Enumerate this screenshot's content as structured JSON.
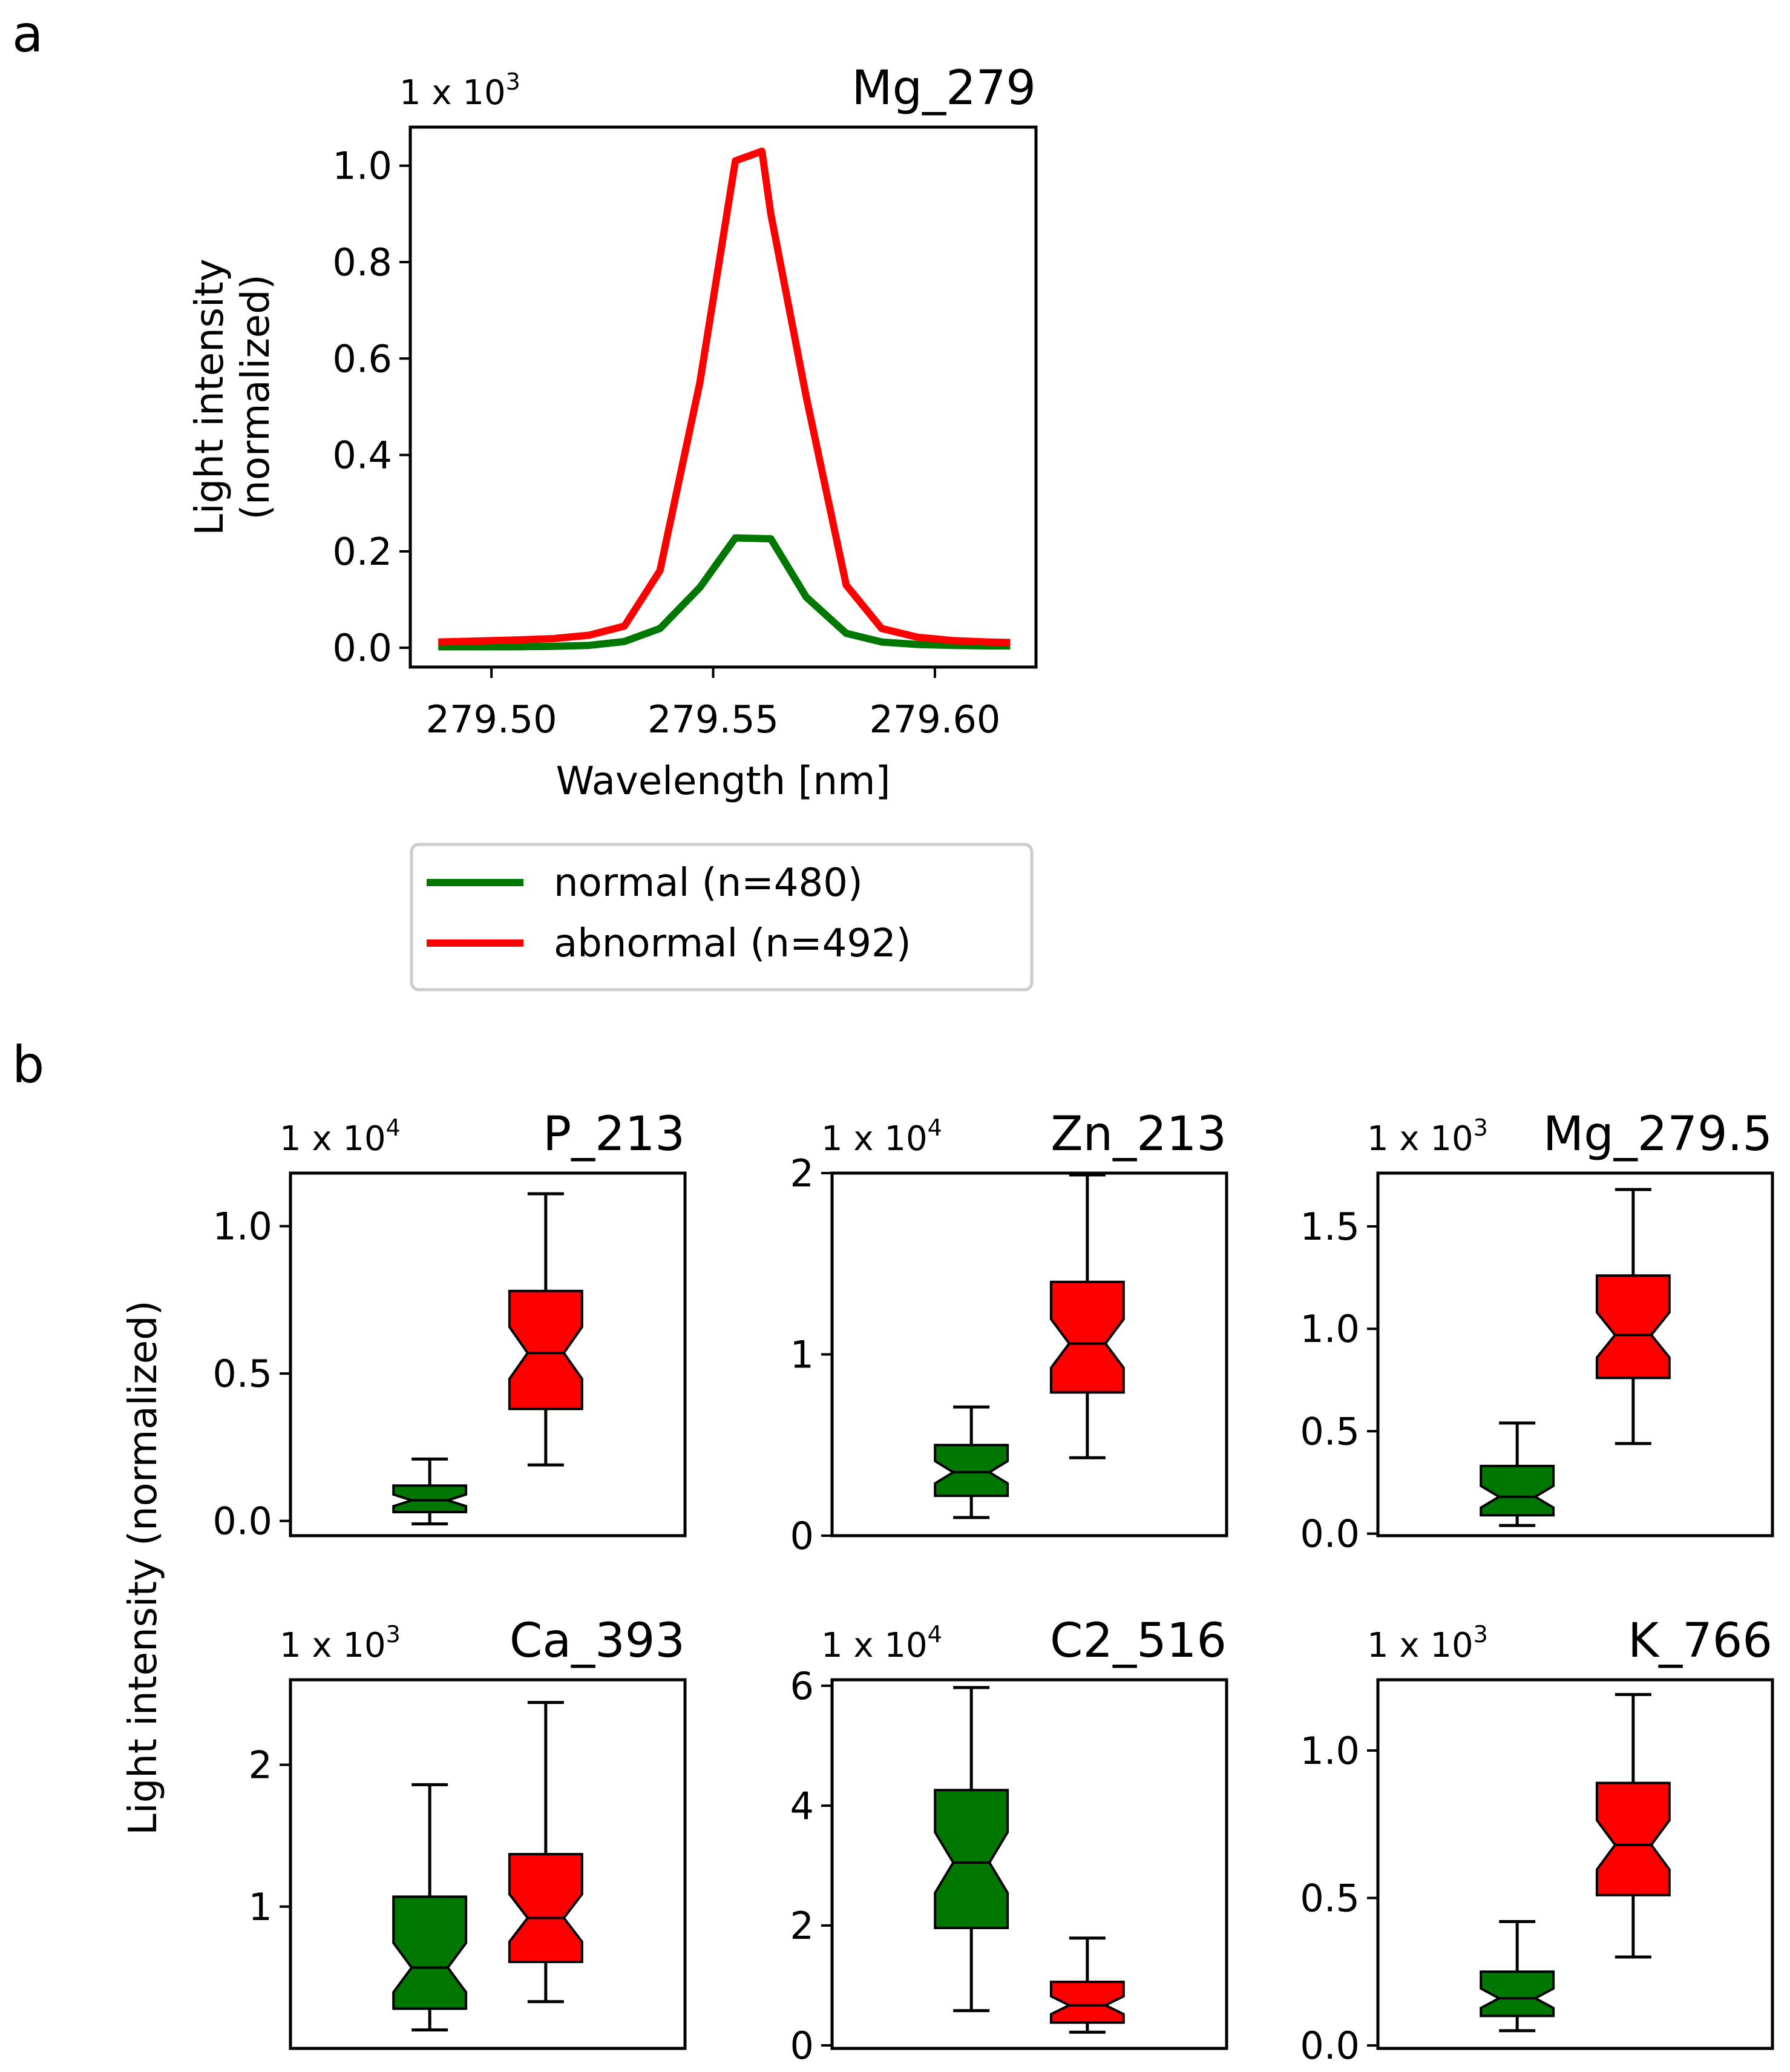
{
  "panels": {
    "a": "a",
    "b": "b"
  },
  "colors": {
    "normal": "#007700",
    "abnormal": "#ff0000",
    "axis": "#000000"
  },
  "legend": {
    "normal_label": "normal (n=480)",
    "abnormal_label": "abnormal (n=492)"
  },
  "boxplot_ylabel": "Light intensity (normalized)",
  "chart_data": [
    {
      "id": "mg279",
      "type": "line",
      "title": "Mg_279",
      "scale_base": "1 x 10",
      "scale_exp": "3",
      "xlabel": "Wavelength [nm]",
      "ylabel_line1": "Light intensity",
      "ylabel_line2": "(normalized)",
      "xlim": [
        279.4817,
        279.6228
      ],
      "ylim": [
        -0.04,
        1.08
      ],
      "xticks": [
        279.5,
        279.55,
        279.6
      ],
      "xtick_labels": [
        "279.50",
        "279.55",
        "279.60"
      ],
      "yticks": [
        0.0,
        0.2,
        0.4,
        0.6,
        0.8,
        1.0
      ],
      "ytick_labels": [
        "0.0",
        "0.2",
        "0.4",
        "0.6",
        "0.8",
        "1.0"
      ],
      "series": [
        {
          "name": "normal (n=480)",
          "color": "#007700",
          "x": [
            279.488,
            279.497,
            279.505,
            279.514,
            279.522,
            279.53,
            279.538,
            279.547,
            279.555,
            279.563,
            279.571,
            279.58,
            279.588,
            279.596,
            279.604,
            279.612,
            279.617
          ],
          "y": [
            0.002,
            0.002,
            0.002,
            0.003,
            0.005,
            0.013,
            0.04,
            0.125,
            0.228,
            0.226,
            0.105,
            0.03,
            0.012,
            0.007,
            0.005,
            0.004,
            0.004
          ]
        },
        {
          "name": "abnormal (n=492)",
          "color": "#ff0000",
          "x": [
            279.488,
            279.497,
            279.505,
            279.514,
            279.522,
            279.53,
            279.538,
            279.547,
            279.555,
            279.561,
            279.563,
            279.571,
            279.58,
            279.588,
            279.596,
            279.604,
            279.612,
            279.617
          ],
          "y": [
            0.012,
            0.014,
            0.016,
            0.019,
            0.026,
            0.045,
            0.16,
            0.55,
            1.01,
            1.03,
            0.9,
            0.52,
            0.13,
            0.04,
            0.022,
            0.015,
            0.012,
            0.011
          ]
        }
      ]
    },
    {
      "id": "p213",
      "type": "box",
      "title": "P_213",
      "scale_base": "1 x 10",
      "scale_exp": "4",
      "ylim": [
        -0.05,
        1.18
      ],
      "yticks": [
        0.0,
        0.5,
        1.0
      ],
      "ytick_labels": [
        "0.0",
        "0.5",
        "1.0"
      ],
      "boxes": [
        {
          "group": "normal",
          "whislo": -0.01,
          "q1": 0.03,
          "med": 0.07,
          "q3": 0.12,
          "whishi": 0.21
        },
        {
          "group": "abnormal",
          "whislo": 0.19,
          "q1": 0.38,
          "med": 0.57,
          "q3": 0.78,
          "whishi": 1.11
        }
      ]
    },
    {
      "id": "zn213",
      "type": "box",
      "title": "Zn_213",
      "scale_base": "1 x 10",
      "scale_exp": "4",
      "ylim": [
        0.0,
        2.0
      ],
      "yticks": [
        0,
        1,
        2
      ],
      "ytick_labels": [
        "0",
        "1",
        "2"
      ],
      "boxes": [
        {
          "group": "normal",
          "whislo": 0.1,
          "q1": 0.22,
          "med": 0.35,
          "q3": 0.5,
          "whishi": 0.71
        },
        {
          "group": "abnormal",
          "whislo": 0.43,
          "q1": 0.79,
          "med": 1.06,
          "q3": 1.4,
          "whishi": 1.99
        }
      ]
    },
    {
      "id": "mg2795",
      "type": "box",
      "title": "Mg_279.5",
      "scale_base": "1 x 10",
      "scale_exp": "3",
      "ylim": [
        -0.01,
        1.76
      ],
      "yticks": [
        0.0,
        0.5,
        1.0,
        1.5
      ],
      "ytick_labels": [
        "0.0",
        "0.5",
        "1.0",
        "1.5"
      ],
      "boxes": [
        {
          "group": "normal",
          "whislo": 0.04,
          "q1": 0.09,
          "med": 0.18,
          "q3": 0.33,
          "whishi": 0.54
        },
        {
          "group": "abnormal",
          "whislo": 0.44,
          "q1": 0.76,
          "med": 0.97,
          "q3": 1.26,
          "whishi": 1.68
        }
      ]
    },
    {
      "id": "ca393",
      "type": "box",
      "title": "Ca_393",
      "scale_base": "1 x 10",
      "scale_exp": "3",
      "ylim": [
        0.0,
        2.6
      ],
      "yticks": [
        1,
        2
      ],
      "ytick_labels": [
        "1",
        "2"
      ],
      "boxes": [
        {
          "group": "normal",
          "whislo": 0.13,
          "q1": 0.28,
          "med": 0.57,
          "q3": 1.07,
          "whishi": 1.86
        },
        {
          "group": "abnormal",
          "whislo": 0.33,
          "q1": 0.61,
          "med": 0.92,
          "q3": 1.37,
          "whishi": 2.44
        }
      ]
    },
    {
      "id": "c2516",
      "type": "box",
      "title": "C2_516",
      "scale_base": "1 x 10",
      "scale_exp": "4",
      "ylim": [
        -0.05,
        6.1
      ],
      "yticks": [
        0,
        2,
        4,
        6
      ],
      "ytick_labels": [
        "0",
        "2",
        "4",
        "6"
      ],
      "boxes": [
        {
          "group": "normal",
          "whislo": 0.58,
          "q1": 1.96,
          "med": 3.05,
          "q3": 4.26,
          "whishi": 5.97
        },
        {
          "group": "abnormal",
          "whislo": 0.22,
          "q1": 0.38,
          "med": 0.67,
          "q3": 1.06,
          "whishi": 1.79
        }
      ]
    },
    {
      "id": "k766",
      "type": "box",
      "title": "K_766",
      "scale_base": "1 x 10",
      "scale_exp": "3",
      "ylim": [
        -0.01,
        1.24
      ],
      "yticks": [
        0.0,
        0.5,
        1.0
      ],
      "ytick_labels": [
        "0.0",
        "0.5",
        "1.0"
      ],
      "boxes": [
        {
          "group": "normal",
          "whislo": 0.05,
          "q1": 0.1,
          "med": 0.16,
          "q3": 0.25,
          "whishi": 0.42
        },
        {
          "group": "abnormal",
          "whislo": 0.3,
          "q1": 0.51,
          "med": 0.68,
          "q3": 0.89,
          "whishi": 1.19
        }
      ]
    }
  ]
}
